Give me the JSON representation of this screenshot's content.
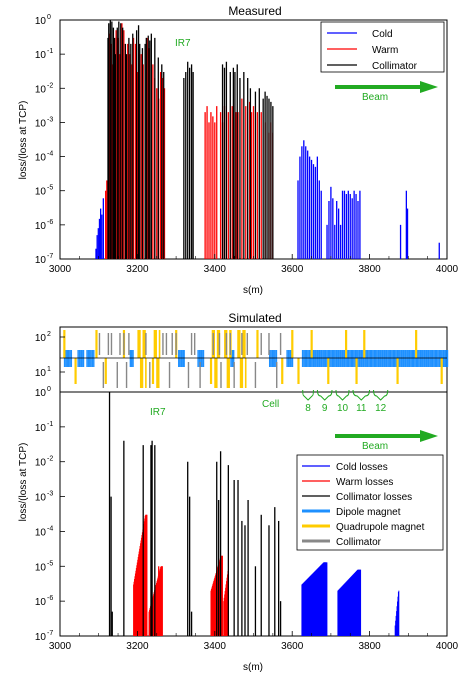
{
  "colors": {
    "cold": "#0000ff",
    "warm": "#ff0000",
    "collimator": "#000000",
    "dipole": "#1e90ff",
    "quadrupole": "#ffcc00",
    "collimator_magnet": "#888888",
    "annotation": "#22aa22"
  },
  "chart_data": [
    {
      "type": "bar",
      "panel": "top",
      "title": "Measured",
      "xlabel": "s(m)",
      "ylabel": "loss/(loss at TCP)",
      "xlim": [
        3000,
        4000
      ],
      "ylim": [
        1e-07,
        1
      ],
      "yscale": "log",
      "grid": false,
      "legend_position": "top-right",
      "xticks": [
        "3000",
        "3200",
        "3400",
        "3600",
        "3800",
        "4000"
      ],
      "yticks": [
        "10",
        "10",
        "10",
        "10",
        "10",
        "10",
        "10",
        "10"
      ],
      "ytick_exponents": [
        "0",
        "-1",
        "-2",
        "-3",
        "-4",
        "-5",
        "-6",
        "-7"
      ],
      "annotations": {
        "ir": "IR7",
        "beam": "Beam"
      },
      "series": [
        {
          "name": "Cold",
          "color_key": "cold",
          "points": [
            [
              3093,
              2e-07
            ],
            [
              3096,
              5e-07
            ],
            [
              3099,
              8e-07
            ],
            [
              3102,
              1.5e-06
            ],
            [
              3105,
              3e-06
            ],
            [
              3108,
              2e-06
            ],
            [
              3112,
              6e-06
            ],
            [
              3615,
              2e-05
            ],
            [
              3620,
              0.0001
            ],
            [
              3625,
              0.0002
            ],
            [
              3630,
              0.0003
            ],
            [
              3635,
              0.0002
            ],
            [
              3640,
              0.00015
            ],
            [
              3645,
              0.0001
            ],
            [
              3650,
              8e-05
            ],
            [
              3655,
              6e-05
            ],
            [
              3660,
              5e-05
            ],
            [
              3665,
              0.0001
            ],
            [
              3670,
              2e-05
            ],
            [
              3675,
              1e-05
            ],
            [
              3690,
              1e-06
            ],
            [
              3695,
              5e-06
            ],
            [
              3700,
              1.3e-05
            ],
            [
              3705,
              6e-06
            ],
            [
              3710,
              1e-06
            ],
            [
              3715,
              5e-06
            ],
            [
              3720,
              3e-06
            ],
            [
              3725,
              1e-06
            ],
            [
              3730,
              1e-05
            ],
            [
              3735,
              1e-05
            ],
            [
              3740,
              8e-06
            ],
            [
              3745,
              1e-05
            ],
            [
              3750,
              8e-06
            ],
            [
              3755,
              6e-06
            ],
            [
              3760,
              1e-05
            ],
            [
              3765,
              8e-06
            ],
            [
              3770,
              5e-06
            ],
            [
              3775,
              1e-05
            ],
            [
              3880,
              1e-06
            ],
            [
              3895,
              1e-05
            ],
            [
              3898,
              3e-06
            ],
            [
              3980,
              3e-07
            ]
          ]
        },
        {
          "name": "Warm",
          "color_key": "warm",
          "points": [
            [
              3118,
              1e-05
            ],
            [
              3121,
              2e-05
            ],
            [
              3128,
              0.4
            ],
            [
              3132,
              0.2
            ],
            [
              3137,
              0.05
            ],
            [
              3145,
              0.5
            ],
            [
              3150,
              0.3
            ],
            [
              3155,
              0.1
            ],
            [
              3160,
              0.8
            ],
            [
              3165,
              0.5
            ],
            [
              3175,
              0.2
            ],
            [
              3180,
              0.1
            ],
            [
              3185,
              0.05
            ],
            [
              3190,
              0.3
            ],
            [
              3195,
              0.2
            ],
            [
              3200,
              0.03
            ],
            [
              3210,
              0.1
            ],
            [
              3215,
              0.05
            ],
            [
              3225,
              0.3
            ],
            [
              3230,
              0.15
            ],
            [
              3240,
              0.05
            ],
            [
              3245,
              0.02
            ],
            [
              3250,
              0.01
            ],
            [
              3255,
              0.005
            ],
            [
              3260,
              0.03
            ],
            [
              3265,
              0.02
            ],
            [
              3270,
              0.01
            ],
            [
              3375,
              0.002
            ],
            [
              3380,
              0.003
            ],
            [
              3385,
              0.001
            ],
            [
              3390,
              0.002
            ],
            [
              3395,
              0.0015
            ],
            [
              3400,
              0.001
            ],
            [
              3405,
              0.003
            ],
            [
              3415,
              0.002
            ],
            [
              3420,
              0.001
            ],
            [
              3425,
              0.003
            ],
            [
              3435,
              0.002
            ],
            [
              3445,
              0.003
            ],
            [
              3455,
              0.002
            ],
            [
              3460,
              0.002
            ],
            [
              3470,
              0.005
            ],
            [
              3480,
              0.003
            ],
            [
              3490,
              0.004
            ],
            [
              3495,
              0.002
            ],
            [
              3500,
              0.003
            ],
            [
              3510,
              0.002
            ],
            [
              3520,
              0.002
            ],
            [
              3530,
              0.001
            ],
            [
              3540,
              0.0005
            ],
            [
              3545,
              0.001
            ],
            [
              3550,
              0.0005
            ]
          ]
        },
        {
          "name": "Collimator",
          "color_key": "collimator",
          "points": [
            [
              3124,
              0.3
            ],
            [
              3126,
              0.8
            ],
            [
              3130,
              1.0
            ],
            [
              3134,
              0.9
            ],
            [
              3138,
              0.6
            ],
            [
              3141,
              0.3
            ],
            [
              3143,
              0.1
            ],
            [
              3148,
              0.6
            ],
            [
              3152,
              0.9
            ],
            [
              3157,
              0.8
            ],
            [
              3162,
              0.6
            ],
            [
              3169,
              0.2
            ],
            [
              3172,
              0.1
            ],
            [
              3178,
              0.3
            ],
            [
              3183,
              0.2
            ],
            [
              3188,
              0.4
            ],
            [
              3198,
              0.5
            ],
            [
              3203,
              0.7
            ],
            [
              3206,
              0.2
            ],
            [
              3213,
              0.15
            ],
            [
              3220,
              0.2
            ],
            [
              3223,
              0.3
            ],
            [
              3228,
              0.35
            ],
            [
              3232,
              0.25
            ],
            [
              3236,
              0.4
            ],
            [
              3245,
              0.3
            ],
            [
              3254,
              0.08
            ],
            [
              3263,
              0.05
            ],
            [
              3268,
              0.03
            ],
            [
              3320,
              0.02
            ],
            [
              3325,
              0.03
            ],
            [
              3330,
              0.06
            ],
            [
              3335,
              0.04
            ],
            [
              3340,
              0.05
            ],
            [
              3344,
              0.03
            ],
            [
              3420,
              0.05
            ],
            [
              3425,
              0.04
            ],
            [
              3430,
              0.06
            ],
            [
              3440,
              0.03
            ],
            [
              3448,
              0.04
            ],
            [
              3452,
              0.03
            ],
            [
              3458,
              0.05
            ],
            [
              3465,
              0.02
            ],
            [
              3475,
              0.03
            ],
            [
              3485,
              0.02
            ],
            [
              3492,
              0.01
            ],
            [
              3505,
              0.008
            ],
            [
              3515,
              0.01
            ],
            [
              3525,
              0.005
            ],
            [
              3530,
              0.008
            ],
            [
              3535,
              0.006
            ],
            [
              3540,
              0.005
            ],
            [
              3545,
              0.004
            ],
            [
              3550,
              0.003
            ]
          ]
        }
      ]
    },
    {
      "type": "bar",
      "panel": "bottom",
      "title": "Simulated",
      "xlabel": "s(m)",
      "ylabel": "loss/(loss at TCP)",
      "xlim": [
        3000,
        4000
      ],
      "ylim": [
        1e-07,
        1
      ],
      "yscale": "log",
      "grid": false,
      "legend_position": "bottom-right",
      "xticks": [
        "3000",
        "3200",
        "3400",
        "3600",
        "3800",
        "4000"
      ],
      "yticks": [
        "10",
        "10",
        "10",
        "10",
        "10",
        "10",
        "10",
        "10"
      ],
      "ytick_exponents": [
        "0",
        "-1",
        "-2",
        "-3",
        "-4",
        "-5",
        "-6",
        "-7"
      ],
      "magnet_yticks": [
        "10",
        "10"
      ],
      "magnet_ytick_exponents": [
        "2",
        "1"
      ],
      "annotations": {
        "ir": "IR7",
        "beam": "Beam",
        "cell": "Cell",
        "cell_numbers": [
          "8",
          "9",
          "10",
          "11",
          "12"
        ]
      },
      "legend": [
        {
          "label": "Cold losses",
          "color_key": "cold",
          "thick": false
        },
        {
          "label": "Warm losses",
          "color_key": "warm",
          "thick": false
        },
        {
          "label": "Collimator losses",
          "color_key": "collimator",
          "thick": false
        },
        {
          "label": "Dipole magnet",
          "color_key": "dipole",
          "thick": true
        },
        {
          "label": "Quadrupole magnet",
          "color_key": "quadrupole",
          "thick": true
        },
        {
          "label": "Collimator",
          "color_key": "collimator_magnet",
          "thick": true
        }
      ],
      "series": [
        {
          "name": "Cold losses",
          "color_key": "cold",
          "points": [
            [
              3620,
              1e-07
            ],
            [
              3980,
              1e-07
            ]
          ],
          "bands": [
            {
              "x0": 3625,
              "x1": 3690,
              "peak": 1.3e-05,
              "start": 3e-06
            },
            {
              "x0": 3718,
              "x1": 3777,
              "peak": 8e-06,
              "start": 2e-06
            },
            {
              "x0": 3866,
              "x1": 3876,
              "peak": 2e-06,
              "start": 2e-07
            }
          ]
        },
        {
          "name": "Warm losses",
          "color_key": "warm",
          "points": [
            [
              3200,
              4e-06
            ],
            [
              3245,
              2e-06
            ],
            [
              3255,
              1e-05
            ]
          ],
          "bands": [
            {
              "x0": 3190,
              "x1": 3225,
              "peak": 0.0003,
              "start": 3e-06
            },
            {
              "x0": 3230,
              "x1": 3265,
              "peak": 1e-05,
              "start": 5e-07
            },
            {
              "x0": 3390,
              "x1": 3420,
              "peak": 2e-05,
              "start": 2e-06
            },
            {
              "x0": 3423,
              "x1": 3436,
              "peak": 8e-06,
              "start": 1e-06
            }
          ]
        },
        {
          "name": "Collimator losses",
          "color_key": "collimator",
          "points": [
            [
              3128,
              1.0
            ],
            [
              3132,
              0.001
            ],
            [
              3135,
              5e-07
            ],
            [
              3165,
              0.04
            ],
            [
              3215,
              0.03
            ],
            [
              3235,
              0.03
            ],
            [
              3238,
              0.04
            ],
            [
              3245,
              0.03
            ],
            [
              3330,
              0.01
            ],
            [
              3335,
              0.001
            ],
            [
              3340,
              5e-07
            ],
            [
              3405,
              0.01
            ],
            [
              3410,
              0.0008
            ],
            [
              3415,
              0.02
            ],
            [
              3435,
              0.008
            ],
            [
              3450,
              0.003
            ],
            [
              3460,
              0.003
            ],
            [
              3470,
              0.0002
            ],
            [
              3478,
              0.00015
            ],
            [
              3486,
              0.0008
            ],
            [
              3505,
              1e-05
            ],
            [
              3520,
              0.0003
            ],
            [
              3540,
              0.00015
            ],
            [
              3555,
              0.0005
            ],
            [
              3565,
              0.0002
            ],
            [
              3570,
              1e-06
            ]
          ]
        }
      ],
      "magnets": {
        "dipole_ranges": [
          [
            3010,
            3030
          ],
          [
            3045,
            3062
          ],
          [
            3068,
            3088
          ],
          [
            3180,
            3190
          ],
          [
            3305,
            3320
          ],
          [
            3355,
            3370
          ],
          [
            3440,
            3450
          ],
          [
            3540,
            3560
          ],
          [
            3585,
            3600
          ],
          [
            3625,
            4000
          ]
        ],
        "quadrupole_x": [
          3011,
          3040,
          3094,
          3118,
          3165,
          3240,
          3300,
          3390,
          3510,
          3574,
          3600,
          3616,
          3650,
          3693,
          3739,
          3766,
          3786,
          3872,
          3920,
          3986
        ],
        "quadrupole_wide_ranges": [
          [
            3200,
            3220
          ],
          [
            3242,
            3256
          ],
          [
            3392,
            3410
          ],
          [
            3424,
            3440
          ],
          [
            3458,
            3478
          ]
        ],
        "collimator_x": [
          3102,
          3112,
          3125,
          3133,
          3148,
          3155,
          3165,
          3172,
          3178,
          3222,
          3232,
          3266,
          3275,
          3283,
          3290,
          3300,
          3332,
          3340,
          3348,
          3362,
          3396,
          3412,
          3416,
          3430,
          3440,
          3450,
          3470,
          3484,
          3505,
          3520,
          3540,
          3560,
          3570
        ],
        "cell_bracket_ranges": [
          [
            3622,
            3660
          ],
          [
            3660,
            3708
          ],
          [
            3708,
            3752
          ],
          [
            3752,
            3805
          ],
          [
            3805,
            3852
          ]
        ]
      }
    }
  ]
}
